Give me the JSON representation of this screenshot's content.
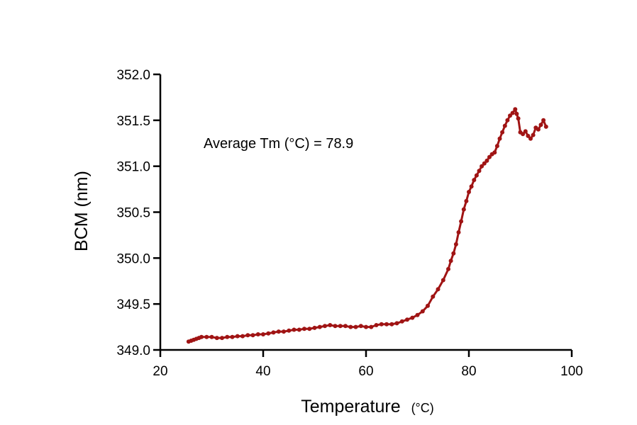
{
  "chart_data": {
    "type": "line",
    "xlabel": "Temperature",
    "xlabel_unit": "(°C)",
    "ylabel": "BCM (nm)",
    "xlim": [
      20,
      100
    ],
    "ylim": [
      349.0,
      352.0
    ],
    "xticks": [
      "20",
      "40",
      "60",
      "80",
      "100"
    ],
    "yticks": [
      "349.0",
      "349.5",
      "350.0",
      "350.5",
      "351.0",
      "351.5",
      "352.0"
    ],
    "annotation": "Average Tm (°C) = 78.9",
    "grid": false,
    "legend": "none",
    "series_color": "#A01414",
    "series": [
      {
        "x": [
          25.5,
          26,
          26.5,
          27,
          27.5,
          28,
          29,
          30,
          31,
          32,
          33,
          34,
          35,
          36,
          37,
          38,
          39,
          40,
          41,
          42,
          43,
          44,
          45,
          46,
          47,
          48,
          49,
          50,
          51,
          52,
          53,
          54,
          55,
          56,
          57,
          58,
          59,
          60,
          61,
          62,
          63,
          64,
          65,
          66,
          67,
          68,
          69,
          70,
          71,
          72,
          73,
          74,
          75,
          76,
          76.5,
          77,
          77.5,
          78,
          78.5,
          79,
          79.5,
          80,
          80.5,
          81,
          81.5,
          82,
          82.5,
          83,
          83.5,
          84,
          84.5,
          85,
          85.5,
          86,
          86.5,
          87,
          87.5,
          88,
          88.5,
          89,
          89.3,
          89.6,
          90,
          90.5,
          91,
          91.5,
          92,
          92.5,
          93,
          93.5,
          94,
          94.5,
          95
        ],
        "y": [
          349.09,
          349.1,
          349.11,
          349.12,
          349.13,
          349.14,
          349.14,
          349.14,
          349.13,
          349.13,
          349.14,
          349.14,
          349.15,
          349.15,
          349.16,
          349.16,
          349.17,
          349.17,
          349.18,
          349.19,
          349.2,
          349.2,
          349.21,
          349.22,
          349.22,
          349.23,
          349.23,
          349.24,
          349.25,
          349.26,
          349.27,
          349.26,
          349.26,
          349.26,
          349.25,
          349.25,
          349.26,
          349.25,
          349.25,
          349.27,
          349.28,
          349.28,
          349.28,
          349.29,
          349.31,
          349.33,
          349.35,
          349.38,
          349.42,
          349.48,
          349.58,
          349.66,
          349.76,
          349.88,
          349.97,
          350.05,
          350.15,
          350.28,
          350.4,
          350.53,
          350.62,
          350.72,
          350.78,
          350.85,
          350.9,
          350.95,
          351.0,
          351.03,
          351.06,
          351.1,
          351.13,
          351.15,
          351.22,
          351.3,
          351.37,
          351.44,
          351.5,
          351.55,
          351.58,
          351.62,
          351.57,
          351.52,
          351.37,
          351.35,
          351.38,
          351.33,
          351.3,
          351.34,
          351.42,
          351.4,
          351.45,
          351.5,
          351.43
        ]
      }
    ]
  }
}
